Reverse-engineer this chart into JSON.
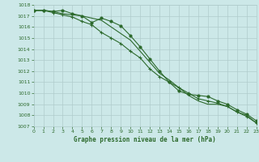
{
  "line1": [
    1017.5,
    1017.5,
    1017.4,
    1017.2,
    1017.1,
    1017.0,
    1016.8,
    1016.6,
    1016.0,
    1015.4,
    1014.8,
    1013.8,
    1012.8,
    1011.8,
    1011.2,
    1010.5,
    1009.8,
    1009.3,
    1009.0,
    1009.0,
    1008.8,
    1008.3,
    1008.0,
    1007.3
  ],
  "line2": [
    1017.5,
    1017.5,
    1017.4,
    1017.5,
    1017.2,
    1017.0,
    1016.4,
    1016.8,
    1016.5,
    1016.1,
    1015.2,
    1014.2,
    1013.1,
    1012.0,
    1011.0,
    1010.2,
    1009.9,
    1009.8,
    1009.7,
    1009.3,
    1009.0,
    1008.5,
    1008.1,
    1007.5
  ],
  "line3": [
    1017.5,
    1017.5,
    1017.3,
    1017.1,
    1016.9,
    1016.5,
    1016.2,
    1015.5,
    1015.0,
    1014.5,
    1013.8,
    1013.2,
    1012.2,
    1011.5,
    1011.0,
    1010.5,
    1010.0,
    1009.5,
    1009.3,
    1009.1,
    1008.8,
    1008.3,
    1007.9,
    1007.3
  ],
  "x": [
    0,
    1,
    2,
    3,
    4,
    5,
    6,
    7,
    8,
    9,
    10,
    11,
    12,
    13,
    14,
    15,
    16,
    17,
    18,
    19,
    20,
    21,
    22,
    23
  ],
  "ylim": [
    1007,
    1018
  ],
  "yticks": [
    1007,
    1008,
    1009,
    1010,
    1011,
    1012,
    1013,
    1014,
    1015,
    1016,
    1017,
    1018
  ],
  "xticks": [
    0,
    1,
    2,
    3,
    4,
    5,
    6,
    7,
    8,
    9,
    10,
    11,
    12,
    13,
    14,
    15,
    16,
    17,
    18,
    19,
    20,
    21,
    22,
    23
  ],
  "line_color": "#2d6a2d",
  "bg_color": "#cce8e8",
  "grid_color": "#b0cccc",
  "xlabel": "Graphe pression niveau de la mer (hPa)",
  "xlabel_color": "#2d6a2d"
}
